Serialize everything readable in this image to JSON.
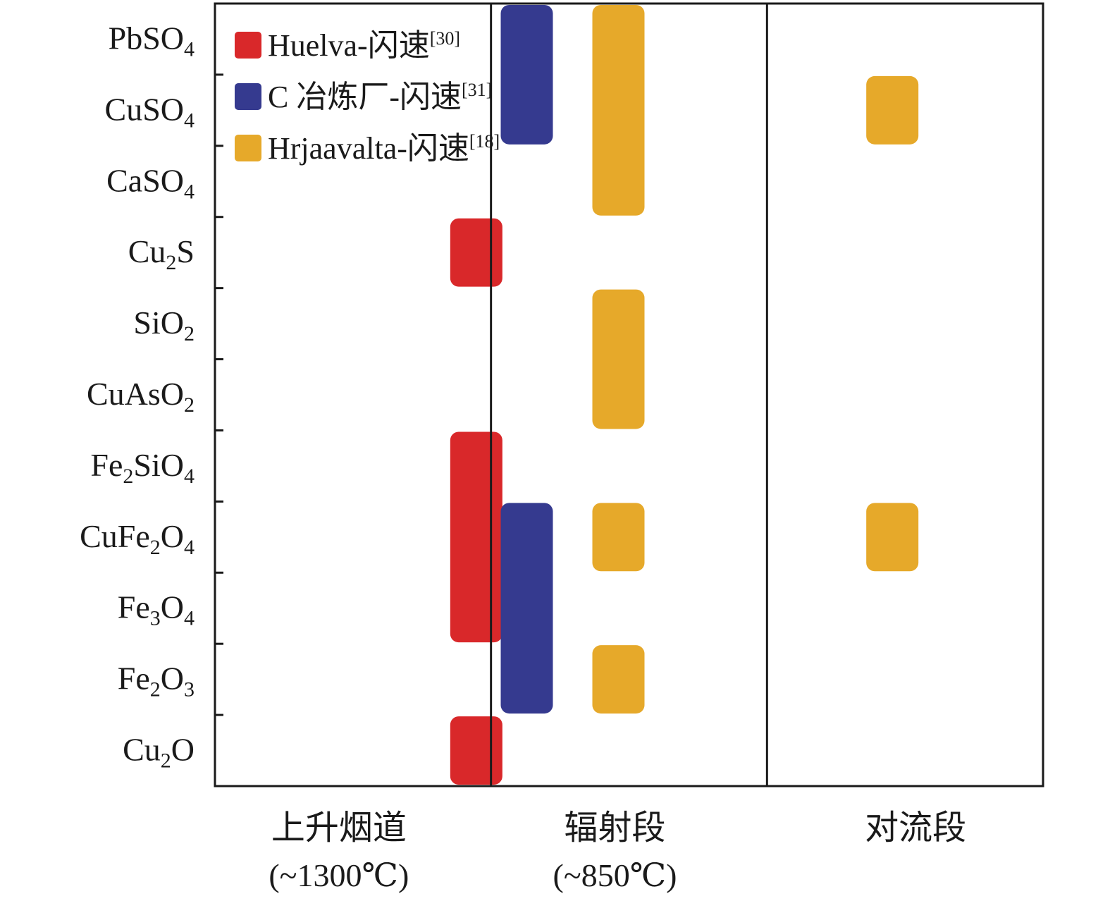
{
  "chart_data": {
    "type": "range-bar",
    "y_categories": [
      {
        "base": "PbSO",
        "sub": "4",
        "tail": ""
      },
      {
        "base": "CuSO",
        "sub": "4",
        "tail": ""
      },
      {
        "base": "CaSO",
        "sub": "4",
        "tail": ""
      },
      {
        "base": "Cu",
        "sub": "2",
        "tail": "S"
      },
      {
        "base": "SiO",
        "sub": "2",
        "tail": ""
      },
      {
        "base": "CuAsO",
        "sub": "2",
        "tail": ""
      },
      {
        "base": "Fe",
        "sub": "2",
        "tail": "SiO",
        "sub2": "4"
      },
      {
        "base": "CuFe",
        "sub": "2",
        "tail": "O",
        "sub2": "4"
      },
      {
        "base": "Fe",
        "sub": "3",
        "tail": "O",
        "sub2": "4"
      },
      {
        "base": "Fe",
        "sub": "2",
        "tail": "O",
        "sub2": "3"
      },
      {
        "base": "Cu",
        "sub": "2",
        "tail": "O"
      }
    ],
    "x_categories": [
      {
        "name": "上升烟道",
        "temp": "(~1300℃)"
      },
      {
        "name": "辐射段",
        "temp": "(~850℃)"
      },
      {
        "name": "对流段",
        "temp": ""
      }
    ],
    "series": [
      {
        "label": "Huelva-闪速",
        "ref": "[30]",
        "color": "#d9282a",
        "bars": [
          {
            "section": 0,
            "from": 3,
            "to": 3
          },
          {
            "section": 0,
            "from": 6,
            "to": 8
          },
          {
            "section": 0,
            "from": 10,
            "to": 10
          }
        ]
      },
      {
        "label": "C 冶炼厂-闪速",
        "ref": "[31]",
        "color": "#353a8f",
        "bars": [
          {
            "section": 1,
            "from": 0,
            "to": 1
          },
          {
            "section": 1,
            "from": 7,
            "to": 9
          }
        ]
      },
      {
        "label": "Hrjaavalta-闪速",
        "ref": "[18]",
        "color": "#e6a92a",
        "bars": [
          {
            "section": 1,
            "from": 0,
            "to": 2
          },
          {
            "section": 1,
            "from": 4,
            "to": 5
          },
          {
            "section": 1,
            "from": 7,
            "to": 7
          },
          {
            "section": 1,
            "from": 9,
            "to": 9
          },
          {
            "section": 2,
            "from": 1,
            "to": 1
          },
          {
            "section": 2,
            "from": 7,
            "to": 7
          }
        ]
      }
    ],
    "legend_position": "top-left",
    "grid": false
  }
}
